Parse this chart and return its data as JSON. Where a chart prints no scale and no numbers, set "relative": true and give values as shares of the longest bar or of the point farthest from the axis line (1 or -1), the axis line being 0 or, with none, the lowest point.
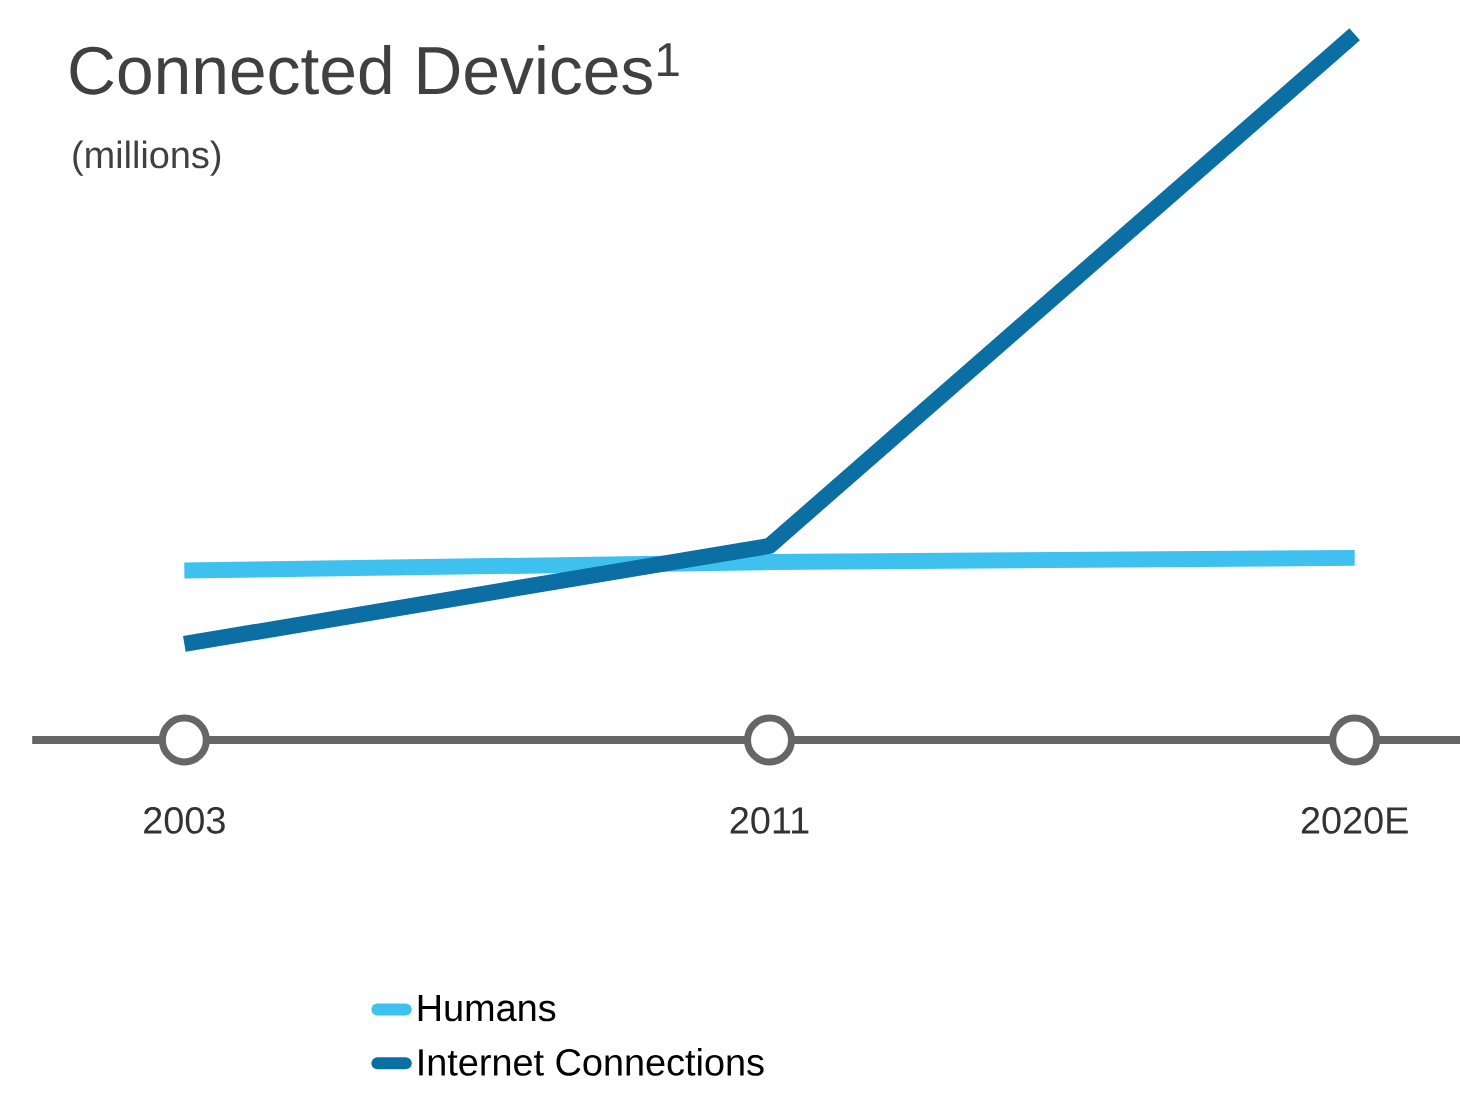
{
  "chart_data": {
    "type": "line",
    "title": "Connected Devices$^{1}$",
    "subtitle": "(millions)",
    "relative": true,
    "categories": [
      "2003",
      "2011",
      "2020E"
    ],
    "series": [
      {
        "name": "Humans",
        "color": "#3fc1f0",
        "values": [
          0.24,
          0.252,
          0.258
        ]
      },
      {
        "name": "Internet Connections",
        "color": "#0b6fa4",
        "values": [
          0.136,
          0.275,
          1
        ]
      }
    ],
    "legend": "bottom",
    "marker": "none",
    "line_style": "solid"
  }
}
